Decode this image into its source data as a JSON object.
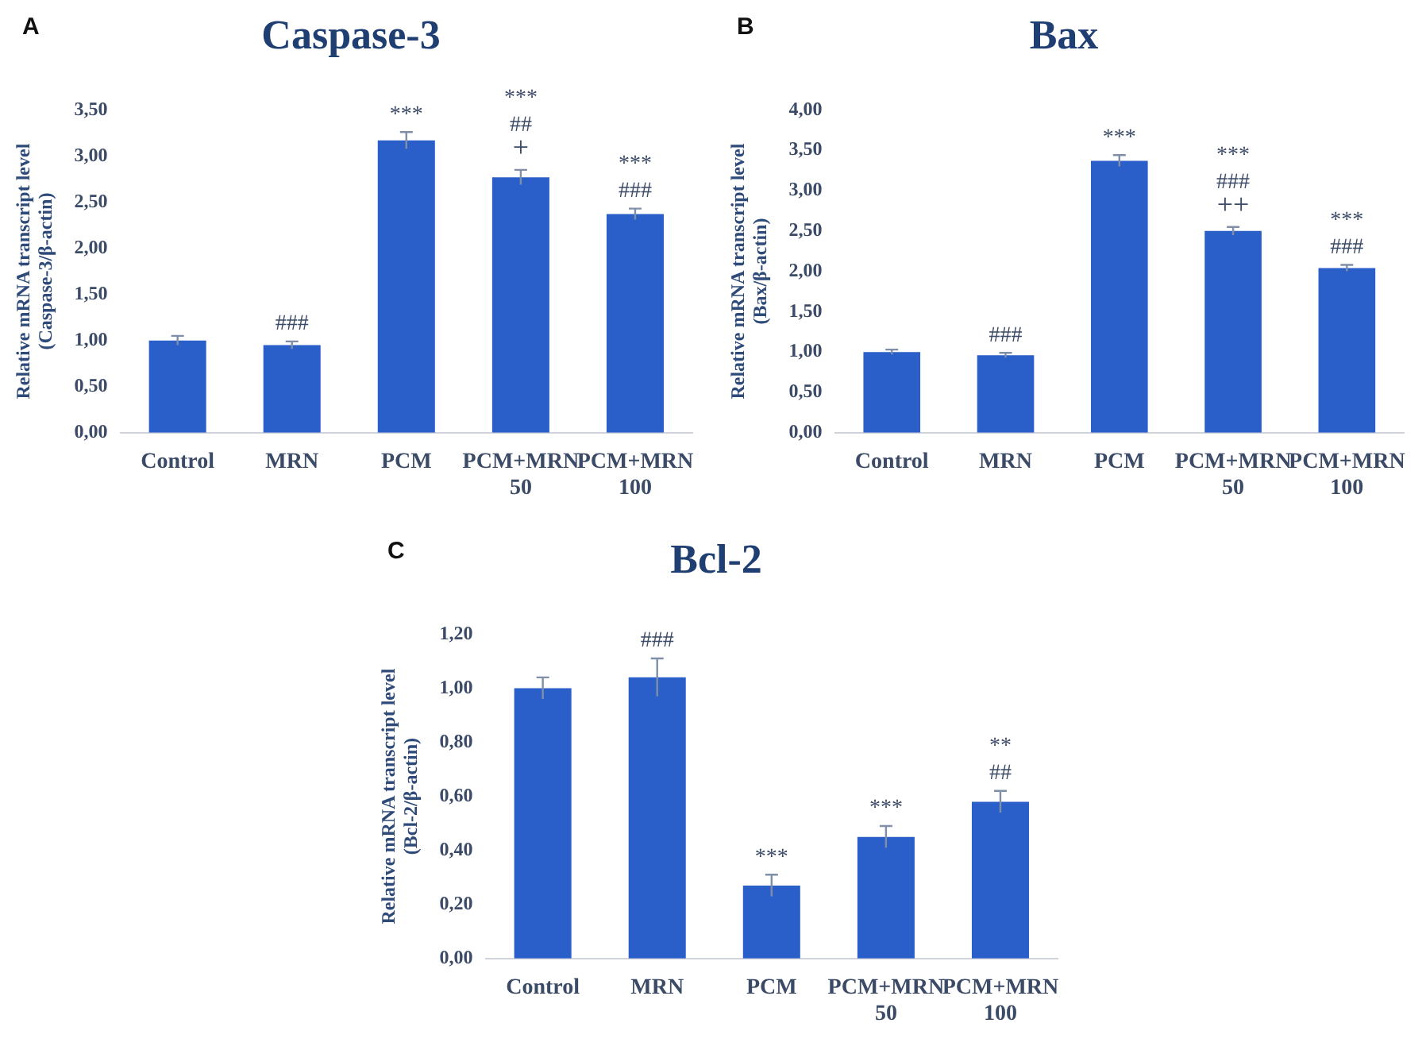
{
  "chart_data": [
    {
      "type": "bar",
      "title": "Caspase-3",
      "ylabel": "Relative mRNA transcript level\n(Caspase-3/β-actin)",
      "categories": [
        "Control",
        "MRN",
        "PCM",
        "PCM+MRN 50",
        "PCM+MRN 100"
      ],
      "values": [
        1.0,
        0.95,
        3.17,
        2.77,
        2.37
      ],
      "errors": [
        0.05,
        0.04,
        0.09,
        0.08,
        0.06
      ],
      "color": "#2a5fc9",
      "ylim": [
        0,
        3.5
      ],
      "yticks": [
        {
          "value": 0,
          "label": "0,00"
        },
        {
          "value": 0.5,
          "label": "0,50"
        },
        {
          "value": 1,
          "label": "1,00"
        },
        {
          "value": 1.5,
          "label": "1,50"
        },
        {
          "value": 2,
          "label": "2,00"
        },
        {
          "value": 2.5,
          "label": "2,50"
        },
        {
          "value": 3,
          "label": "3,00"
        },
        {
          "value": 3.5,
          "label": "3,50"
        }
      ],
      "grid": false,
      "legend": false,
      "annotations": [
        "A",
        {
          "text": "###",
          "x": "MRN",
          "y": 0.95
        },
        {
          "text": "***",
          "x": "PCM",
          "y": 3.17
        },
        {
          "text": "+",
          "x": "PCM+MRN 50",
          "y": 2.77
        },
        {
          "text": "##",
          "x": "PCM+MRN 50",
          "y": 2.77
        },
        {
          "text": "***",
          "x": "PCM+MRN 50",
          "y": 2.77
        },
        {
          "text": "###",
          "x": "PCM+MRN 100",
          "y": 2.37
        },
        {
          "text": "***",
          "x": "PCM+MRN 100",
          "y": 2.37
        }
      ]
    },
    {
      "type": "bar",
      "title": "Bax",
      "ylabel": "Relative mRNA transcript level\n(Bax/β-actin)",
      "categories": [
        "Control",
        "MRN",
        "PCM",
        "PCM+MRN 50",
        "PCM+MRN 100"
      ],
      "values": [
        1.0,
        0.96,
        3.37,
        2.5,
        2.04
      ],
      "errors": [
        0.03,
        0.03,
        0.07,
        0.05,
        0.04
      ],
      "color": "#2a5fc9",
      "ylim": [
        0,
        4
      ],
      "yticks": [
        {
          "value": 0,
          "label": "0,00"
        },
        {
          "value": 0.5,
          "label": "0,50"
        },
        {
          "value": 1,
          "label": "1,00"
        },
        {
          "value": 1.5,
          "label": "1,50"
        },
        {
          "value": 2,
          "label": "2,00"
        },
        {
          "value": 2.5,
          "label": "2,50"
        },
        {
          "value": 3,
          "label": "3,00"
        },
        {
          "value": 3.5,
          "label": "3,50"
        },
        {
          "value": 4,
          "label": "4,00"
        }
      ],
      "grid": false,
      "legend": false,
      "annotations": [
        "B",
        {
          "text": "###",
          "x": "MRN",
          "y": 0.96
        },
        {
          "text": "***",
          "x": "PCM",
          "y": 3.37
        },
        {
          "text": "++",
          "x": "PCM+MRN 50",
          "y": 2.5
        },
        {
          "text": "###",
          "x": "PCM+MRN 50",
          "y": 2.5
        },
        {
          "text": "***",
          "x": "PCM+MRN 50",
          "y": 2.5
        },
        {
          "text": "###",
          "x": "PCM+MRN 100",
          "y": 2.04
        },
        {
          "text": "***",
          "x": "PCM+MRN 100",
          "y": 2.04
        }
      ]
    },
    {
      "type": "bar",
      "title": "Bcl-2",
      "ylabel": "Relative mRNA transcript level\n(Bcl-2/β-actin)",
      "categories": [
        "Control",
        "MRN",
        "PCM",
        "PCM+MRN 50",
        "PCM+MRN 100"
      ],
      "values": [
        1.0,
        1.04,
        0.27,
        0.45,
        0.58
      ],
      "errors": [
        0.04,
        0.07,
        0.04,
        0.04,
        0.04
      ],
      "color": "#2a5fc9",
      "ylim": [
        0,
        1.2
      ],
      "yticks": [
        {
          "value": 0,
          "label": "0,00"
        },
        {
          "value": 0.2,
          "label": "0,20"
        },
        {
          "value": 0.4,
          "label": "0,40"
        },
        {
          "value": 0.6,
          "label": "0,60"
        },
        {
          "value": 0.8,
          "label": "0,80"
        },
        {
          "value": 1,
          "label": "1,00"
        },
        {
          "value": 1.2,
          "label": "1,20"
        }
      ],
      "grid": false,
      "legend": false,
      "annotations": [
        "C",
        {
          "text": "###",
          "x": "MRN",
          "y": 1.04
        },
        {
          "text": "***",
          "x": "PCM",
          "y": 0.27
        },
        {
          "text": "***",
          "x": "PCM+MRN 50",
          "y": 0.45
        },
        {
          "text": "##",
          "x": "PCM+MRN 100",
          "y": 0.58
        },
        {
          "text": "**",
          "x": "PCM+MRN 100",
          "y": 0.58
        }
      ]
    }
  ]
}
